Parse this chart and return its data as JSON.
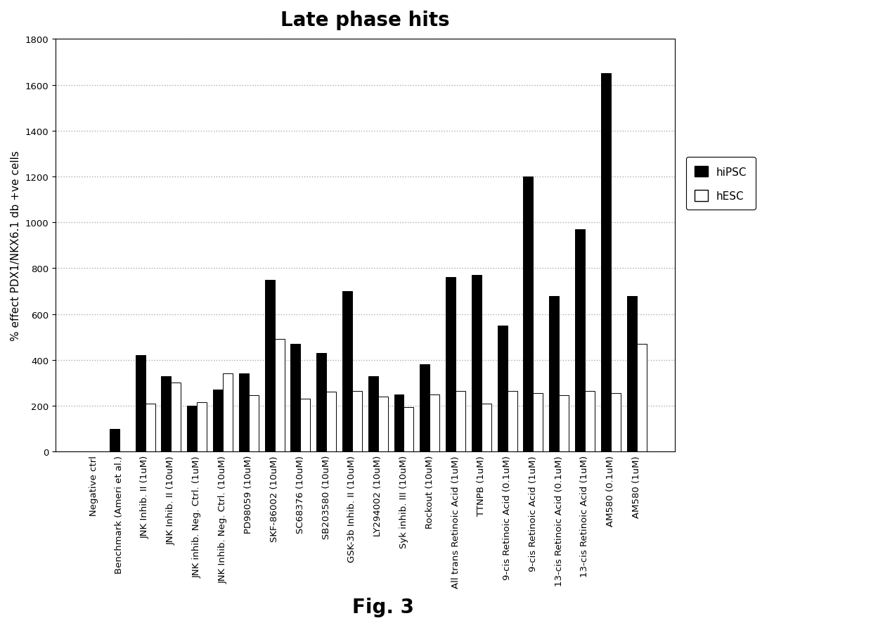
{
  "title": "Late phase hits",
  "ylabel": "% effect PDX1/NKX6.1 db +ve cells",
  "fig_label": "Fig. 3",
  "ylim": [
    0,
    1800
  ],
  "yticks": [
    0,
    200,
    400,
    600,
    800,
    1000,
    1200,
    1400,
    1600,
    1800
  ],
  "categories": [
    "Negative ctrl",
    "Benchmark (Ameri et al.)",
    "JNK Inhib. II (1uM)",
    "JNK Inhib. II (10uM)",
    "JNK inhib. Neg. Ctrl. (1uM)",
    "JNK Inhib. Neg. Ctrl. (10uM)",
    "PD98059 (10uM)",
    "SKF-86002 (10uM)",
    "SC68376 (10uM)",
    "SB203580 (10uM)",
    "GSK-3b Inhib. II (10uM)",
    "LY294002 (10uM)",
    "Syk inhib. III (10uM)",
    "Rockout (10uM)",
    "All trans Retinoic Acid (1uM)",
    "TTNPB (1uM)",
    "9-cis Retinoic Acid (0.1uM)",
    "9-cis Retinoic Acid (1uM)",
    "13-cis Retinoic Acid (0.1uM)",
    "13-cis Retinoic Acid (1uM)",
    "AM580 (0.1uM)",
    "AM580 (1uM)"
  ],
  "hiPSC": [
    0,
    100,
    420,
    330,
    200,
    270,
    340,
    750,
    470,
    430,
    700,
    330,
    250,
    380,
    760,
    770,
    550,
    1200,
    680,
    970,
    1650,
    680
  ],
  "hESC": [
    0,
    0,
    210,
    300,
    215,
    340,
    245,
    490,
    230,
    260,
    265,
    240,
    195,
    250,
    265,
    210,
    265,
    255,
    245,
    265,
    255,
    470
  ],
  "bar_color_hiPSC": "#000000",
  "bar_color_hESC": "#ffffff",
  "bar_edge_color": "#000000",
  "legend_hiPSC": "hiPSC",
  "legend_hESC": "hESC",
  "background_color": "#ffffff",
  "grid_color": "#aaaaaa",
  "title_fontsize": 20,
  "ylabel_fontsize": 11,
  "tick_fontsize": 9.5,
  "legend_fontsize": 11,
  "fig_label_fontsize": 20,
  "bar_width": 0.38
}
